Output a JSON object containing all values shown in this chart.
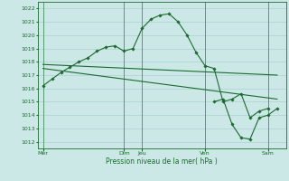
{
  "xlabel": "Pression niveau de la mer( hPa )",
  "bg_color": "#cce8e6",
  "grid_color": "#a0ccca",
  "line_color": "#1a6b2e",
  "ylim": [
    1011.5,
    1022.5
  ],
  "day_labels": [
    "Mer",
    "Dim",
    "Jeu",
    "Ven",
    "Sam"
  ],
  "day_positions": [
    0.0,
    4.5,
    5.5,
    9.0,
    12.5
  ],
  "xlim": [
    -0.3,
    13.5
  ],
  "series_main_x": [
    0.0,
    0.5,
    1.0,
    1.5,
    2.0,
    2.5,
    3.0,
    3.5,
    4.0,
    4.5,
    5.0,
    5.5,
    6.0,
    6.5,
    7.0,
    7.5,
    8.0,
    8.5,
    9.0,
    9.5,
    10.0,
    10.5,
    11.0,
    11.5,
    12.0,
    12.5
  ],
  "series_main_y": [
    1016.2,
    1016.7,
    1017.2,
    1017.6,
    1018.0,
    1018.3,
    1018.8,
    1019.1,
    1019.2,
    1018.8,
    1019.0,
    1020.5,
    1021.2,
    1021.5,
    1021.6,
    1021.0,
    1020.0,
    1018.7,
    1017.7,
    1017.5,
    1015.0,
    1015.2,
    1015.6,
    1013.8,
    1014.3,
    1014.5
  ],
  "series_trend1_x": [
    0.0,
    13.0
  ],
  "series_trend1_y": [
    1017.8,
    1017.0
  ],
  "series_trend2_x": [
    0.0,
    13.0
  ],
  "series_trend2_y": [
    1017.5,
    1015.2
  ],
  "series_end_x": [
    9.5,
    10.0,
    10.5,
    11.0,
    11.5,
    12.0,
    12.5,
    13.0
  ],
  "series_end_y": [
    1015.0,
    1015.2,
    1013.3,
    1012.3,
    1012.2,
    1013.8,
    1014.0,
    1014.5
  ]
}
